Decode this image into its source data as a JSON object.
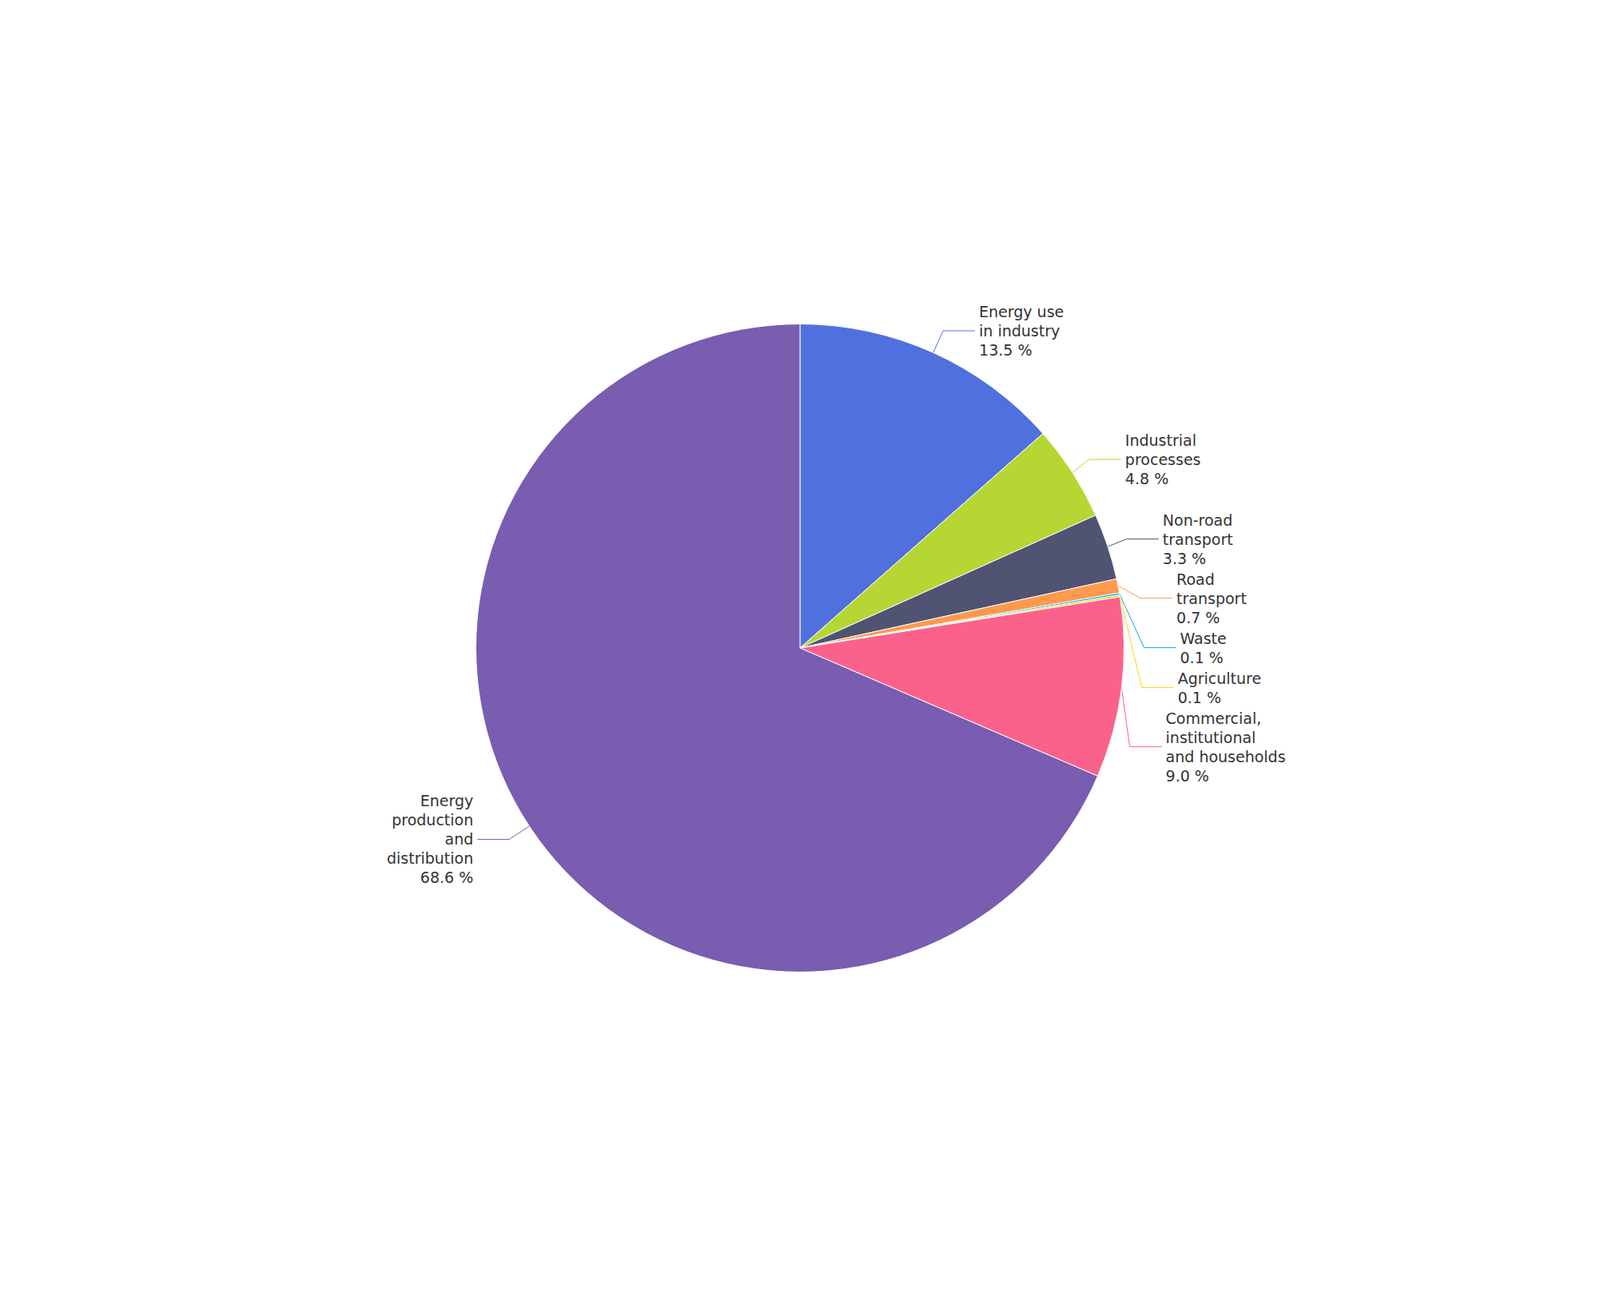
{
  "chart_data": {
    "type": "pie",
    "categories": [
      "Energy use\nin industry",
      "Industrial\nprocesses",
      "Non-road\ntransport",
      "Road\ntransport",
      "Waste",
      "Agriculture",
      "Commercial,\ninstitutional\nand households",
      "Energy\nproduction\nand\ndistribution"
    ],
    "values": [
      13.5,
      4.8,
      3.3,
      0.7,
      0.1,
      0.1,
      9.0,
      68.6
    ],
    "value_labels": [
      "13.5 %",
      "4.8 %",
      "3.3 %",
      "0.7 %",
      "0.1 %",
      "0.1 %",
      "9.0 %",
      "68.6 %"
    ],
    "data_labels": true
  }
}
